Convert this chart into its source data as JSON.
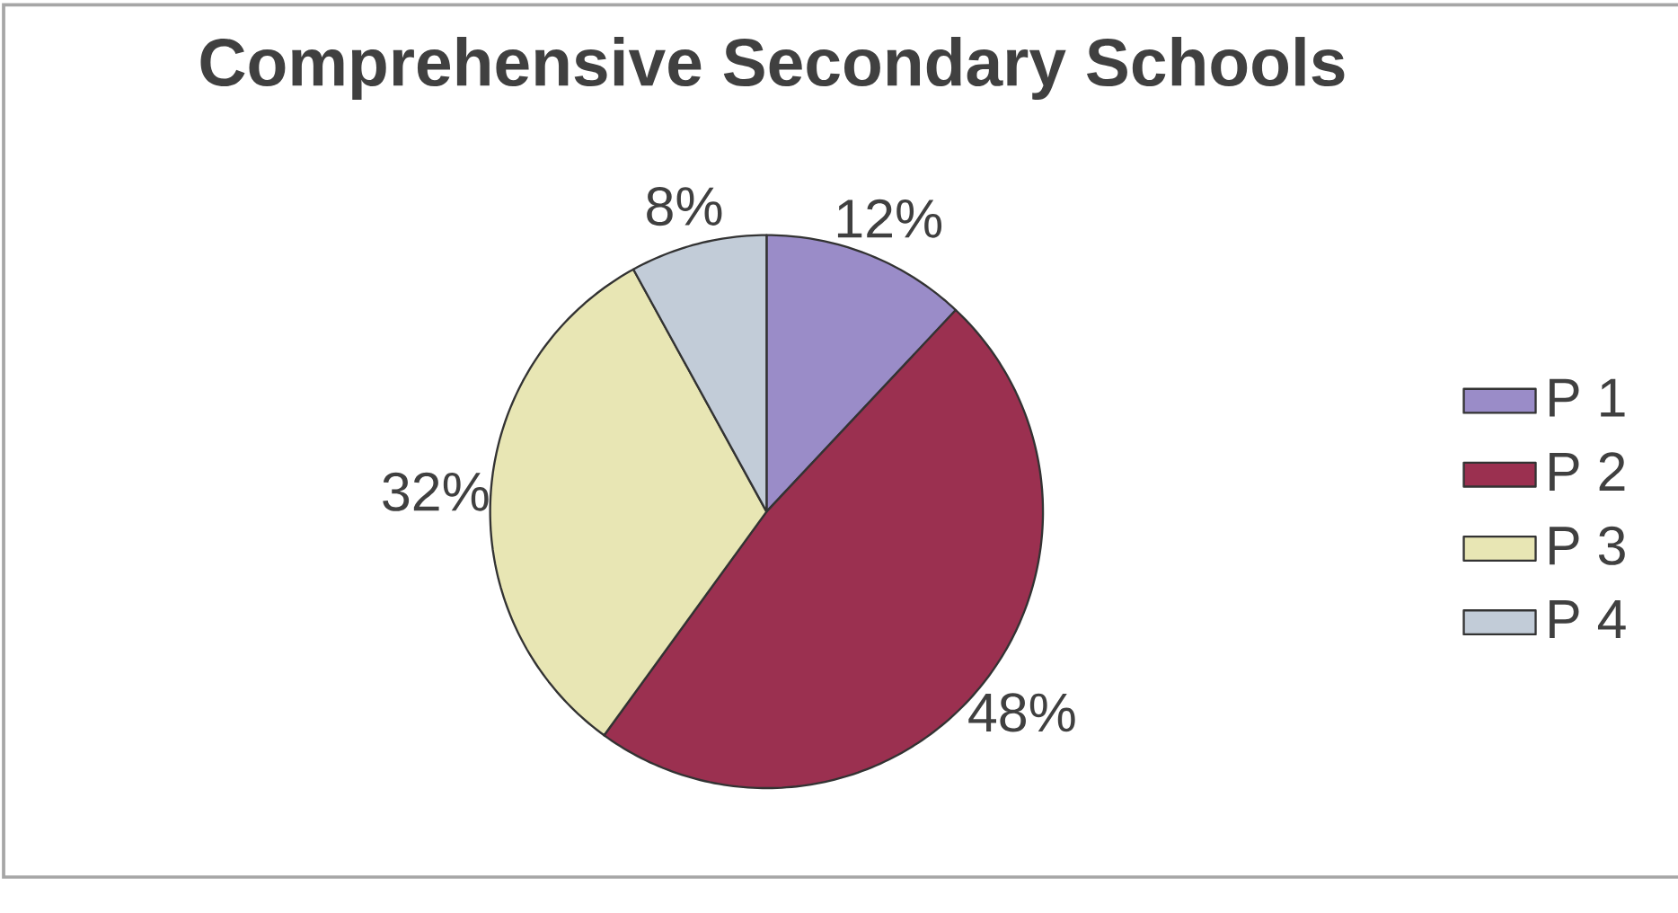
{
  "chart_data": {
    "type": "pie",
    "title": "Comprehensive Secondary Schools",
    "categories": [
      "P 1",
      "P 2",
      "P 3",
      "P 4"
    ],
    "values": [
      12,
      48,
      32,
      8
    ],
    "colors": [
      "#9a8cc8",
      "#9b3050",
      "#e8e6b4",
      "#c2ccd8"
    ],
    "value_labels": [
      "12%",
      "48%",
      "32%",
      "8%"
    ],
    "legend": "right"
  }
}
